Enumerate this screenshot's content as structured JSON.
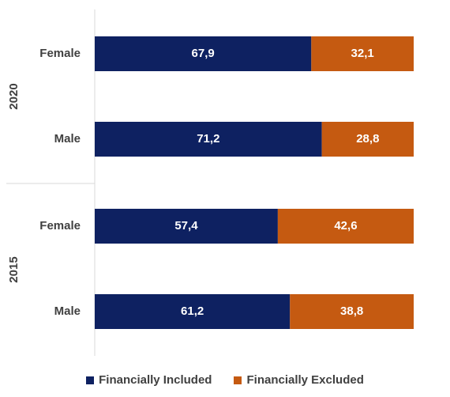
{
  "chart_data": {
    "type": "bar",
    "orientation": "horizontal",
    "stacked": true,
    "title": "",
    "xlabel": "",
    "ylabel": "",
    "xlim": [
      0,
      100
    ],
    "groups": [
      {
        "label": "2020",
        "categories": [
          "Female",
          "Male"
        ]
      },
      {
        "label": "2015",
        "categories": [
          "Female",
          "Male"
        ]
      }
    ],
    "series": [
      {
        "name": "Financially Included",
        "color": "#0e2161",
        "values": [
          67.9,
          71.2,
          57.4,
          61.2
        ],
        "labels": [
          "67,9",
          "71,2",
          "57,4",
          "61,2"
        ]
      },
      {
        "name": "Financially Excluded",
        "color": "#c55a11",
        "values": [
          32.1,
          28.8,
          42.6,
          38.8
        ],
        "labels": [
          "32,1",
          "28,8",
          "42,6",
          "38,8"
        ]
      }
    ],
    "grid": false,
    "legend_position": "bottom"
  }
}
